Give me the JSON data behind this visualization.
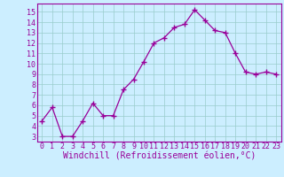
{
  "x": [
    0,
    1,
    2,
    3,
    4,
    5,
    6,
    7,
    8,
    9,
    10,
    11,
    12,
    13,
    14,
    15,
    16,
    17,
    18,
    19,
    20,
    21,
    22,
    23
  ],
  "y": [
    4.5,
    5.8,
    3.0,
    3.0,
    4.5,
    6.2,
    5.0,
    5.0,
    7.5,
    8.5,
    10.2,
    12.0,
    12.5,
    13.5,
    13.8,
    15.2,
    14.2,
    13.2,
    13.0,
    11.0,
    9.2,
    9.0,
    9.2,
    9.0
  ],
  "line_color": "#990099",
  "marker": "+",
  "markersize": 4,
  "linewidth": 0.9,
  "xlabel": "Windchill (Refroidissement éolien,°C)",
  "xlabel_fontsize": 7,
  "xlabel_color": "#990099",
  "bg_color": "#cceeff",
  "grid_color": "#99cccc",
  "xlim": [
    -0.5,
    23.5
  ],
  "ylim": [
    2.5,
    15.8
  ],
  "xtick_labels": [
    "0",
    "1",
    "2",
    "3",
    "4",
    "5",
    "6",
    "7",
    "8",
    "9",
    "10",
    "11",
    "12",
    "13",
    "14",
    "15",
    "16",
    "17",
    "18",
    "19",
    "20",
    "21",
    "22",
    "23"
  ],
  "ytick_vals": [
    3,
    4,
    5,
    6,
    7,
    8,
    9,
    10,
    11,
    12,
    13,
    14,
    15
  ],
  "tick_fontsize": 6,
  "tick_color": "#990099",
  "spine_color": "#990099"
}
